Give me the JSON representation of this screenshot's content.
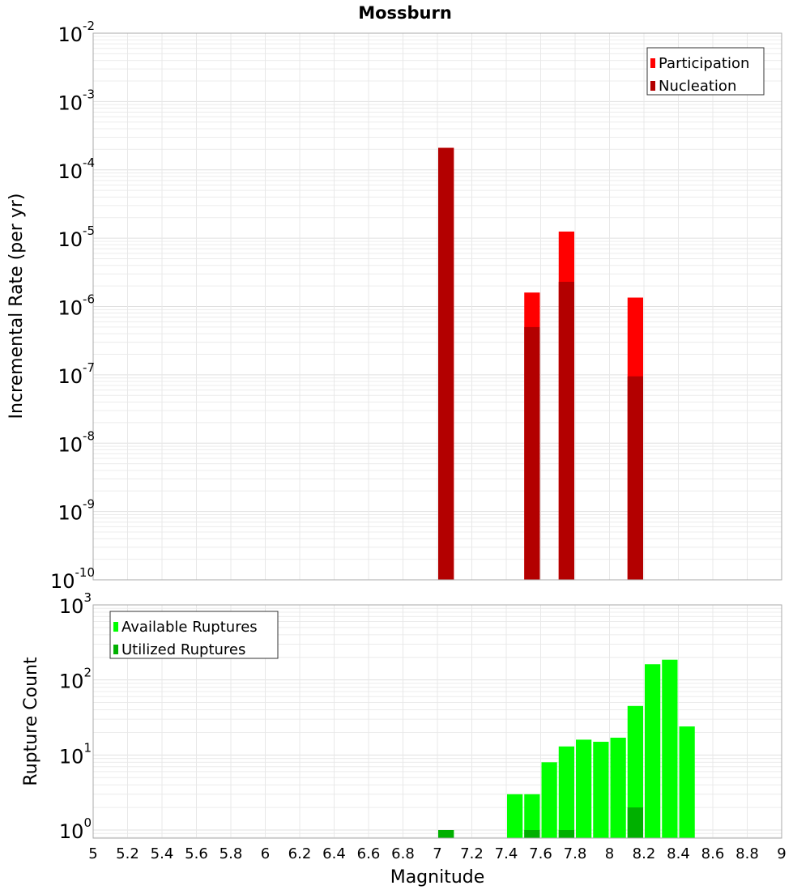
{
  "chart_data": [
    {
      "type": "bar",
      "title": "Mossburn",
      "xlabel": "",
      "ylabel": "Incremental Rate (per yr)",
      "yscale": "log",
      "ylim": [
        1e-10,
        0.01
      ],
      "xlim": [
        5,
        9
      ],
      "bin_width": 0.1,
      "grid": true,
      "legend_position": "top-right",
      "x": [
        7.0,
        7.5,
        7.7,
        8.1
      ],
      "series": [
        {
          "name": "Participation",
          "color": "#ff0000",
          "values": [
            0.00021,
            1.6e-06,
            1.25e-05,
            1.35e-06
          ]
        },
        {
          "name": "Nucleation",
          "color": "#b30000",
          "values": [
            0.00021,
            5e-07,
            2.3e-06,
            9.5e-08
          ]
        }
      ],
      "ytick_exponents": [
        -2,
        -3,
        -4,
        -5,
        -6,
        -7,
        -8,
        -9,
        -10
      ]
    },
    {
      "type": "bar",
      "title": "",
      "xlabel": "Magnitude",
      "ylabel": "Rupture Count",
      "yscale": "log",
      "ylim": [
        0.78,
        1000
      ],
      "xlim": [
        5,
        9
      ],
      "bin_width": 0.1,
      "grid": true,
      "legend_position": "top-left",
      "series": [
        {
          "name": "Available Ruptures",
          "color": "#00ff00",
          "x": [
            7.0,
            7.4,
            7.5,
            7.6,
            7.7,
            7.8,
            7.9,
            8.0,
            8.1,
            8.2,
            8.3,
            8.4
          ],
          "values": [
            1,
            3,
            3,
            8,
            13,
            16,
            15,
            17,
            45,
            162,
            186,
            24
          ]
        },
        {
          "name": "Utilized Ruptures",
          "color": "#00b000",
          "x": [
            7.0,
            7.5,
            7.7,
            8.1
          ],
          "values": [
            1,
            1,
            1,
            2
          ]
        }
      ],
      "ytick_exponents": [
        3,
        2,
        1,
        0
      ],
      "xticks": [
        "5",
        "5.2",
        "5.4",
        "5.6",
        "5.8",
        "6",
        "6.2",
        "6.4",
        "6.6",
        "6.8",
        "7",
        "7.2",
        "7.4",
        "7.6",
        "7.8",
        "8",
        "8.2",
        "8.4",
        "8.6",
        "8.8",
        "9"
      ]
    }
  ]
}
